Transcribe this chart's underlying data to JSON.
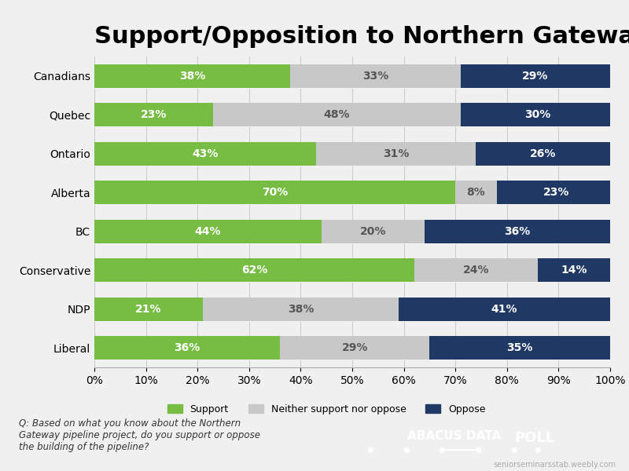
{
  "title": "Support/Opposition to Northern Gateway Pipeline",
  "categories": [
    "Canadians",
    "Quebec",
    "Ontario",
    "Alberta",
    "BC",
    "Conservative",
    "NDP",
    "Liberal"
  ],
  "support": [
    38,
    23,
    43,
    70,
    44,
    62,
    21,
    36
  ],
  "neutral": [
    33,
    48,
    31,
    8,
    20,
    24,
    38,
    29
  ],
  "oppose": [
    29,
    30,
    26,
    23,
    36,
    14,
    41,
    35
  ],
  "support_color": "#77bc43",
  "neutral_color": "#c8c8c8",
  "oppose_color": "#1f3864",
  "bg_color": "#f0f0f0",
  "bar_bg_color": "#ffffff",
  "title_fontsize": 22,
  "label_fontsize": 10,
  "tick_fontsize": 10,
  "footnote": "Q: Based on what you know about the Northern\nGateway pipeline project, do you support or oppose\nthe building of the pipeline?",
  "watermark": "seniorseminarsstab.weebly.com"
}
